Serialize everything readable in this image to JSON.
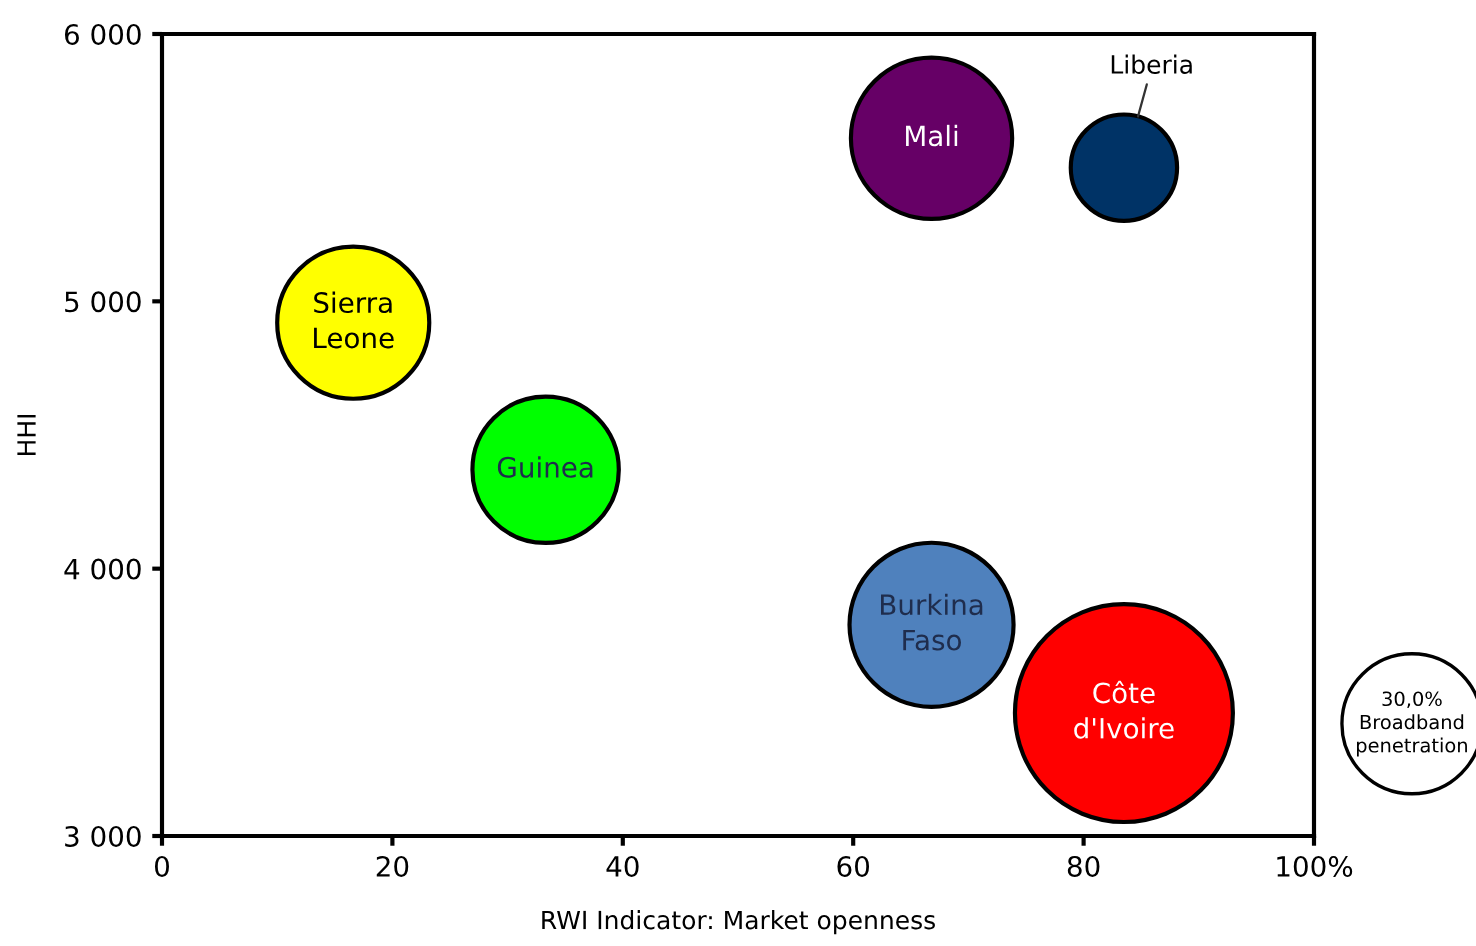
{
  "chart_data": {
    "type": "bubble",
    "xlabel": "RWI Indicator: Market openness",
    "ylabel": "HHI",
    "series": [
      {
        "name": "Sierra Leone",
        "color": "#ffff00",
        "x": [
          16.6
        ],
        "values": [
          4920
        ],
        "sizes": [
          35.4
        ]
      },
      {
        "name": "Guinea",
        "color": "#00ff00",
        "x": [
          33.3
        ],
        "values": [
          4370
        ],
        "sizes": [
          32.8
        ]
      },
      {
        "name": "Mali",
        "color": "#660066",
        "x": [
          66.8
        ],
        "values": [
          5610
        ],
        "sizes": [
          39.8
        ]
      },
      {
        "name": "Liberia",
        "color": "#003366",
        "x": [
          83.5
        ],
        "values": [
          5500
        ],
        "sizes": [
          17.3
        ]
      },
      {
        "name": "Burkina Faso",
        "color": "#4f81bd",
        "x": [
          66.8
        ],
        "values": [
          3790
        ],
        "sizes": [
          41.2
        ]
      },
      {
        "name": "Côte d'Ivoire",
        "color": "#ff0000",
        "x": [
          83.5
        ],
        "values": [
          3460
        ],
        "sizes": [
          72.7
        ]
      }
    ],
    "size_legend": [
      {
        "value": 30,
        "label": "30,0%"
      }
    ],
    "legend_title": "Broadband penetration",
    "xlim": [
      0,
      100
    ],
    "xticks": [
      0,
      20,
      40,
      60,
      80,
      {
        "value": 100,
        "label": "100%"
      }
    ],
    "ylim": [
      3000,
      6000
    ],
    "yticks": [
      {
        "value": 3000,
        "label": "3 000"
      },
      {
        "value": 4000,
        "label": "4 000"
      },
      {
        "value": 5000,
        "label": "5 000"
      },
      {
        "value": 6000,
        "label": "6 000"
      }
    ],
    "grid": false
  }
}
